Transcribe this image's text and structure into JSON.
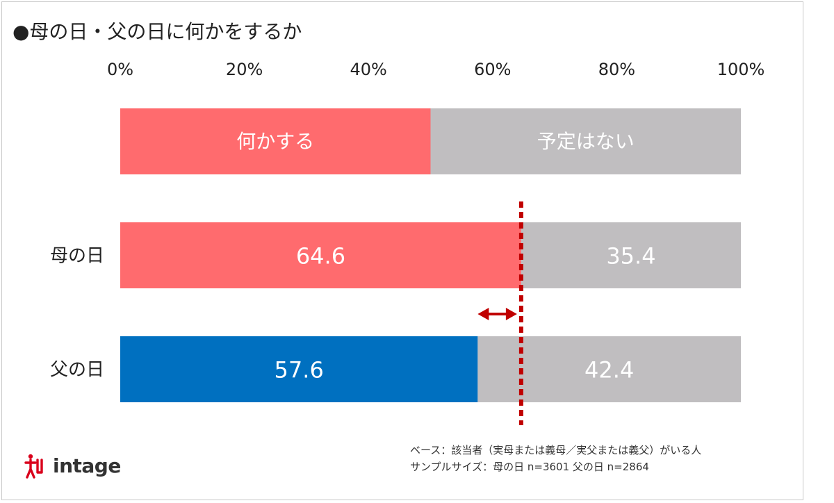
{
  "title": "●母の日・父の日に何かをするか",
  "chart_data": {
    "type": "bar",
    "orientation": "horizontal",
    "stacked": true,
    "x_ticks": [
      "0%",
      "20%",
      "40%",
      "60%",
      "80%",
      "100%"
    ],
    "xlim": [
      0,
      100
    ],
    "legend_bar": {
      "labels": [
        "何かする",
        "予定はない"
      ],
      "values": [
        50,
        50
      ]
    },
    "categories": [
      "母の日",
      "父の日"
    ],
    "series": [
      {
        "name": "何かする",
        "values": [
          64.6,
          57.6
        ],
        "labels": [
          "64.6",
          "57.6"
        ]
      },
      {
        "name": "予定はない",
        "values": [
          35.4,
          42.4
        ],
        "labels": [
          "35.4",
          "42.4"
        ]
      }
    ],
    "reference_line": {
      "value": 64.6,
      "style": "dotted"
    },
    "gap_arrow": {
      "from": 57.6,
      "to": 64.6
    }
  },
  "colors": {
    "do_mother": "#ff6b6e",
    "do_father": "#0070c0",
    "none": "#c0bec0",
    "reference": "#c00000",
    "axis_text": "#222222"
  },
  "footnote": {
    "line1": "ベース：該当者（実母または義母／実父または義父）がいる人",
    "line2": "サンプルサイズ：母の日 n=3601 父の日 n=2864"
  },
  "logo": {
    "text": "intage",
    "icon": "intage-logo-icon"
  }
}
